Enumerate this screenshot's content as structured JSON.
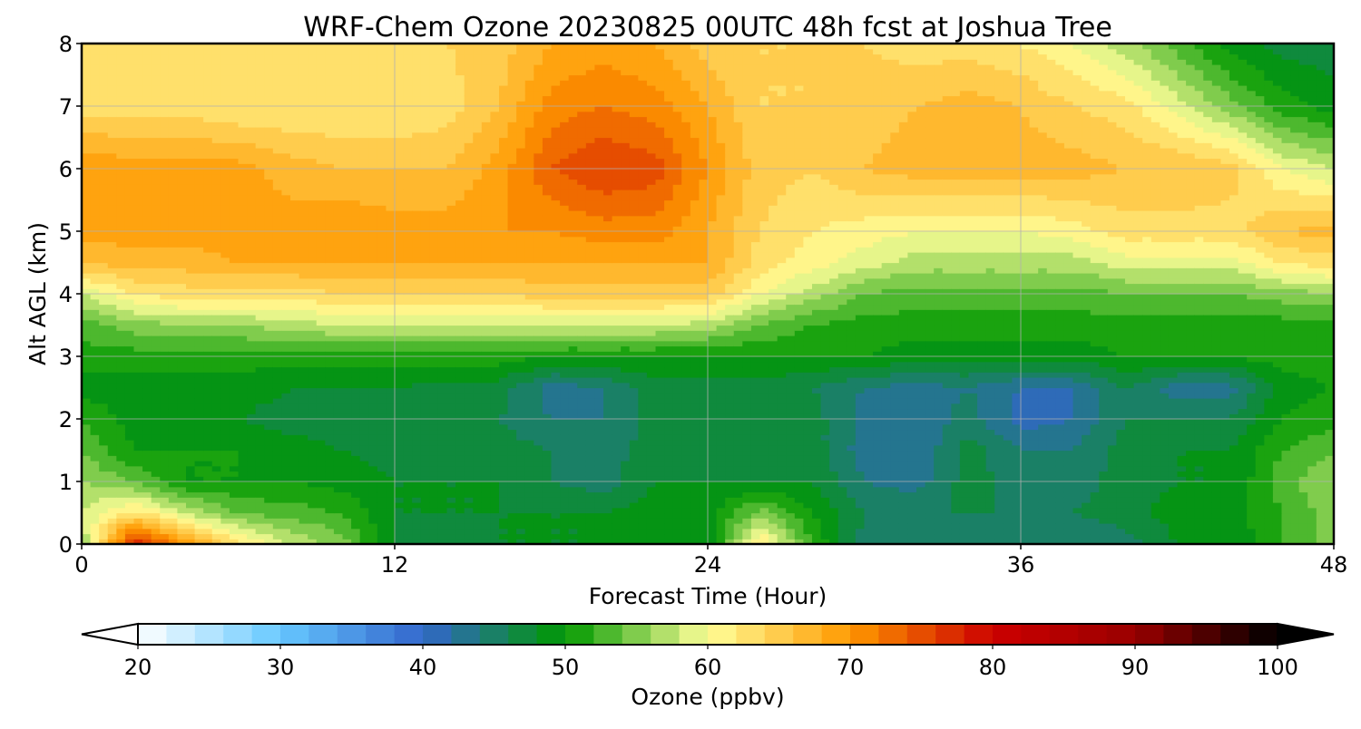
{
  "chart_data": {
    "type": "heatmap",
    "title": "WRF-Chem Ozone  20230825 00UTC 48h fcst at Joshua Tree",
    "xlabel": "Forecast Time (Hour)",
    "ylabel": "Alt AGL (km)",
    "xlim": [
      0,
      48
    ],
    "ylim": [
      0,
      8
    ],
    "xticks": [
      0,
      12,
      24,
      36,
      48
    ],
    "yticks": [
      0,
      1,
      2,
      3,
      4,
      5,
      6,
      7,
      8
    ],
    "grid": true,
    "x": [
      0,
      2,
      4,
      6,
      8,
      10,
      12,
      14,
      16,
      18,
      20,
      22,
      24,
      26,
      28,
      30,
      32,
      34,
      36,
      38,
      40,
      42,
      44,
      46,
      48
    ],
    "y": [
      0,
      0.5,
      1,
      1.5,
      2,
      2.5,
      3,
      3.5,
      4,
      4.5,
      5,
      6,
      7,
      8
    ],
    "z": [
      [
        56,
        78,
        70,
        63,
        58,
        55,
        48,
        47,
        48,
        48,
        48,
        48,
        48,
        63,
        52,
        45,
        44,
        44,
        44,
        44,
        45,
        48,
        48,
        52,
        55
      ],
      [
        58,
        63,
        58,
        54,
        53,
        52,
        48,
        48,
        48,
        48,
        48,
        49,
        49,
        55,
        50,
        46,
        46,
        46,
        46,
        46,
        47,
        49,
        49,
        52,
        55
      ],
      [
        56,
        54,
        50,
        50,
        50,
        49,
        48,
        48,
        48,
        46,
        45,
        48,
        48,
        48,
        48,
        44,
        43,
        47,
        45,
        45,
        47,
        48,
        48,
        53,
        56
      ],
      [
        54,
        50,
        50,
        50,
        49,
        48,
        47,
        47,
        47,
        46,
        45,
        47,
        47,
        47,
        47,
        43,
        42,
        47,
        44,
        44,
        47,
        48,
        48,
        52,
        54
      ],
      [
        52,
        49,
        48,
        48,
        47,
        47,
        47,
        47,
        46,
        44,
        44,
        47,
        47,
        47,
        47,
        43,
        42,
        45,
        41,
        42,
        46,
        46,
        46,
        50,
        51
      ],
      [
        49,
        49,
        49,
        49,
        48,
        48,
        48,
        47,
        47,
        43,
        44,
        47,
        47,
        47,
        46,
        44,
        43,
        44,
        42,
        42,
        46,
        43,
        43,
        49,
        50
      ],
      [
        51,
        51,
        51,
        51,
        51,
        51,
        51,
        51,
        51,
        50,
        50,
        50,
        50,
        50,
        50,
        50,
        49,
        49,
        49,
        49,
        50,
        50,
        50,
        51,
        51
      ],
      [
        53,
        55,
        56,
        56,
        57,
        58,
        58,
        58,
        58,
        58,
        58,
        58,
        57,
        54,
        52,
        51,
        51,
        51,
        51,
        51,
        51,
        51,
        51,
        51,
        51
      ],
      [
        58,
        62,
        63,
        63,
        63,
        64,
        64,
        64,
        64,
        65,
        65,
        65,
        65,
        60,
        57,
        54,
        53,
        53,
        53,
        53,
        54,
        54,
        54,
        55,
        56
      ],
      [
        66,
        67,
        67,
        68,
        68,
        68,
        68,
        68,
        68,
        68,
        68,
        68,
        68,
        63,
        61,
        59,
        57,
        57,
        57,
        57,
        59,
        59,
        59,
        62,
        63
      ],
      [
        69,
        69,
        69,
        69,
        69,
        70,
        69,
        69,
        70,
        70,
        71,
        71,
        68,
        64,
        62,
        61,
        60,
        60,
        60,
        61,
        63,
        63,
        63,
        66,
        67
      ],
      [
        70,
        69,
        69,
        69,
        67,
        66,
        66,
        66,
        69,
        74,
        76,
        75,
        70,
        65,
        64,
        66,
        67,
        67,
        67,
        67,
        66,
        66,
        65,
        60,
        58
      ],
      [
        63,
        63,
        63,
        62,
        62,
        62,
        62,
        63,
        66,
        71,
        72,
        71,
        68,
        64,
        64,
        65,
        66,
        67,
        66,
        64,
        63,
        59,
        55,
        51,
        49
      ],
      [
        64,
        64,
        64,
        64,
        64,
        64,
        64,
        64,
        65,
        68,
        69,
        68,
        65,
        64,
        64,
        64,
        63,
        63,
        62,
        60,
        57,
        53,
        49,
        47,
        47
      ]
    ],
    "colorbar": {
      "label": "Ozone  (ppbv)",
      "range": [
        20,
        100
      ],
      "step": 2,
      "ticks": [
        20,
        30,
        40,
        50,
        60,
        70,
        80,
        90,
        100
      ],
      "extend": "both",
      "stops": [
        {
          "v": 20,
          "c": "#ffffff"
        },
        {
          "v": 30,
          "c": "#66c8ff"
        },
        {
          "v": 40,
          "c": "#3366cc"
        },
        {
          "v": 50,
          "c": "#009900"
        },
        {
          "v": 60,
          "c": "#ffff99"
        },
        {
          "v": 70,
          "c": "#ff9900"
        },
        {
          "v": 80,
          "c": "#cc0000"
        },
        {
          "v": 90,
          "c": "#990000"
        },
        {
          "v": 100,
          "c": "#000000"
        }
      ]
    }
  }
}
